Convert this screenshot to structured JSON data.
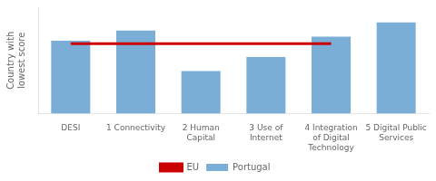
{
  "chart_data": {
    "type": "bar",
    "ylabel": "Country with\nlowest score",
    "categories": [
      "DESI",
      "1 Connectivity",
      "2 Human\nCapital",
      "3 Use of\nInternet",
      "4 Integration\nof Digital\nTechnology",
      "5 Digital Public\nServices"
    ],
    "series": [
      {
        "name": "Portugal",
        "type": "bar",
        "color": "#7aaed6",
        "values": [
          0.72,
          0.82,
          0.42,
          0.56,
          0.76,
          0.9
        ]
      },
      {
        "name": "EU",
        "type": "line",
        "color": "#cc0000",
        "values": [
          0.69,
          0.69,
          0.69,
          0.69,
          0.69,
          null
        ]
      }
    ],
    "ylim": [
      0,
      1.05
    ],
    "tick_labels": "x",
    "grid": false,
    "legend": "bottom"
  }
}
